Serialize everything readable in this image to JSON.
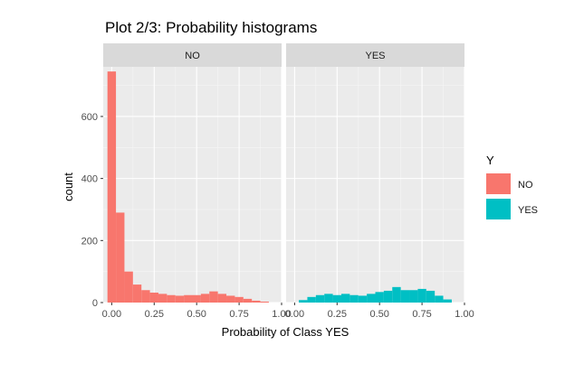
{
  "chart_data": {
    "type": "bar",
    "title": "Plot 2/3: Probability histograms",
    "xlabel": "Probability of Class  YES",
    "ylabel": "count",
    "xlim": [
      -0.05,
      1.0
    ],
    "ylim": [
      0,
      760
    ],
    "x_ticks": [
      0.0,
      0.25,
      0.5,
      0.75,
      1.0
    ],
    "x_tick_labels": [
      "0.00",
      "0.25",
      "0.50",
      "0.75",
      "1.00"
    ],
    "y_ticks": [
      0,
      200,
      400,
      600
    ],
    "y_tick_labels": [
      "0",
      "200",
      "400",
      "600"
    ],
    "grid": true,
    "bin_width": 0.05,
    "legend": {
      "title": "Y",
      "position": "right",
      "entries": [
        {
          "label": "NO",
          "color": "#F8766D"
        },
        {
          "label": "YES",
          "color": "#00BFC4"
        }
      ]
    },
    "panels": [
      {
        "strip": "NO",
        "color": "#F8766D",
        "bins_x": [
          0.0,
          0.05,
          0.1,
          0.15,
          0.2,
          0.25,
          0.3,
          0.35,
          0.4,
          0.45,
          0.5,
          0.55,
          0.6,
          0.65,
          0.7,
          0.75,
          0.8,
          0.85,
          0.9
        ],
        "values": [
          745,
          290,
          100,
          58,
          40,
          32,
          28,
          24,
          22,
          24,
          24,
          28,
          36,
          28,
          22,
          18,
          12,
          6,
          3
        ]
      },
      {
        "strip": "YES",
        "color": "#00BFC4",
        "bins_x": [
          0.05,
          0.1,
          0.15,
          0.2,
          0.25,
          0.3,
          0.35,
          0.4,
          0.45,
          0.5,
          0.55,
          0.6,
          0.65,
          0.7,
          0.75,
          0.8,
          0.85,
          0.9
        ],
        "values": [
          8,
          18,
          24,
          28,
          24,
          28,
          24,
          22,
          28,
          34,
          38,
          50,
          40,
          40,
          44,
          38,
          22,
          10
        ]
      }
    ]
  }
}
